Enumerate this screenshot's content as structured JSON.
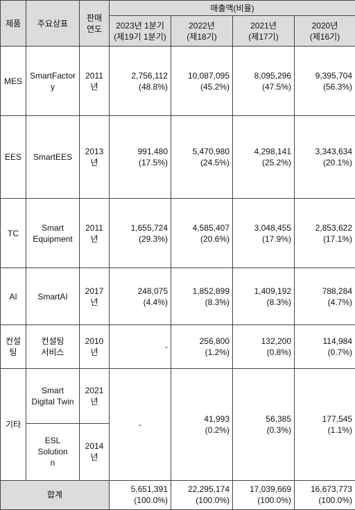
{
  "headers": {
    "product": "제품",
    "brand": "주요상표",
    "launch": [
      "판매",
      "연도"
    ],
    "sales": "매출액(비율)",
    "periods": [
      [
        "2023년 1분기",
        "(제19기 1분기)"
      ],
      [
        "2022년",
        "(제18기)"
      ],
      [
        "2021년",
        "(제17기)"
      ],
      [
        "2020년",
        "(제16기)"
      ]
    ]
  },
  "rows": [
    {
      "product": [
        "MES"
      ],
      "brand": [
        "SmartFactor",
        "y"
      ],
      "year": "2011년",
      "values": [
        [
          "2,756,112",
          "(48.8%)"
        ],
        [
          "10,087,095",
          "(45.2%)"
        ],
        [
          "8,095,296",
          "(47.5%)"
        ],
        [
          "9,395,704",
          "(56.3%)"
        ]
      ]
    },
    {
      "product": [
        "EES"
      ],
      "brand": [
        "SmartEES"
      ],
      "year": "2013년",
      "values": [
        [
          "991,480",
          "(17.5%)"
        ],
        [
          "5,470,980",
          "(24.5%)"
        ],
        [
          "4,298,141",
          "(25.2%)"
        ],
        [
          "3,343,634",
          "(20.1%)"
        ]
      ]
    },
    {
      "product": [
        "TC"
      ],
      "brand": [
        "Smart",
        "Equipment"
      ],
      "year": "2011년",
      "values": [
        [
          "1,655,724",
          "(29.3%)"
        ],
        [
          "4,585,407",
          "(20.6%)"
        ],
        [
          "3,048,455",
          "(17.9%)"
        ],
        [
          "2,853,622",
          "(17.1%)"
        ]
      ]
    },
    {
      "product": [
        "AI"
      ],
      "brand": [
        "SmartAI"
      ],
      "year": "2017년",
      "values": [
        [
          "248,075",
          "(4.4%)"
        ],
        [
          "1,852,899",
          "(8.3%)"
        ],
        [
          "1,409,192",
          "(8.3%)"
        ],
        [
          "788,284",
          "(4.7%)"
        ]
      ]
    },
    {
      "product": [
        "컨설",
        "팅"
      ],
      "brand": [
        "컨설팅",
        "서비스"
      ],
      "year": "2010년",
      "values": [
        [
          "-"
        ],
        [
          "256,800",
          "(1.2%)"
        ],
        [
          "132,200",
          "(0.8%)"
        ],
        [
          "114,984",
          "(0.7%)"
        ]
      ]
    }
  ],
  "other": {
    "product": "기타",
    "sub": [
      {
        "brand": [
          "Smart",
          "Digital Twin"
        ],
        "year": "2021년"
      },
      {
        "brand": [
          "ESL Solution",
          "n"
        ],
        "year": "2014년"
      }
    ],
    "values": [
      [
        "-"
      ],
      [
        "41,993",
        "(0.2%)"
      ],
      [
        "56,385",
        "(0.3%)"
      ],
      [
        "177,545",
        "(1.1%)"
      ]
    ]
  },
  "total": {
    "label": "합계",
    "values": [
      [
        "5,651,391",
        "(100.0%)"
      ],
      [
        "22,295,174",
        "(100.0%)"
      ],
      [
        "17,039,669",
        "(100.0%)"
      ],
      [
        "16,673,773",
        "(100.0%)"
      ]
    ]
  }
}
